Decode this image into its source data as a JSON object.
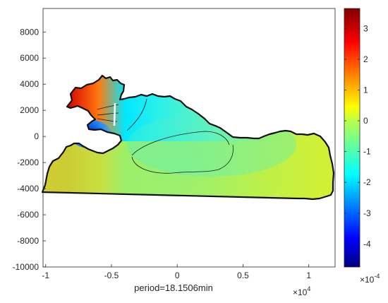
{
  "chart_data": {
    "type": "heatmap",
    "title": "",
    "xlabel": "period=18.1506min",
    "ylabel": "",
    "xlim": [
      -10200,
      12000
    ],
    "ylim": [
      -10000,
      9800
    ],
    "x_ticks": [
      {
        "value": -10000,
        "label": "-1"
      },
      {
        "value": -5000,
        "label": "-0.5"
      },
      {
        "value": 0,
        "label": "0"
      },
      {
        "value": 5000,
        "label": "0.5"
      },
      {
        "value": 10000,
        "label": "1"
      }
    ],
    "x_exponent": {
      "base": "×10",
      "power": "4"
    },
    "y_ticks": [
      {
        "value": 8000,
        "label": "8000"
      },
      {
        "value": 6000,
        "label": "6000"
      },
      {
        "value": 4000,
        "label": "4000"
      },
      {
        "value": 2000,
        "label": "2000"
      },
      {
        "value": 0,
        "label": "0"
      },
      {
        "value": -2000,
        "label": "-2000"
      },
      {
        "value": -4000,
        "label": "-4000"
      },
      {
        "value": -6000,
        "label": "-6000"
      },
      {
        "value": -8000,
        "label": "-8000"
      },
      {
        "value": -10000,
        "label": "-10000"
      }
    ],
    "colorbar": {
      "colormap": "jet",
      "limits": [
        -4.75,
        3.65
      ],
      "ticks": [
        {
          "value": 3,
          "label": "3"
        },
        {
          "value": 2,
          "label": "2"
        },
        {
          "value": 1,
          "label": "1"
        },
        {
          "value": 0,
          "label": "0"
        },
        {
          "value": -1,
          "label": "-1"
        },
        {
          "value": -2,
          "label": "-2"
        },
        {
          "value": -3,
          "label": "-3"
        },
        {
          "value": -4,
          "label": "-4"
        }
      ],
      "exponent": {
        "base": "×10",
        "power": "-4"
      }
    },
    "grid": false,
    "legend": "none"
  }
}
